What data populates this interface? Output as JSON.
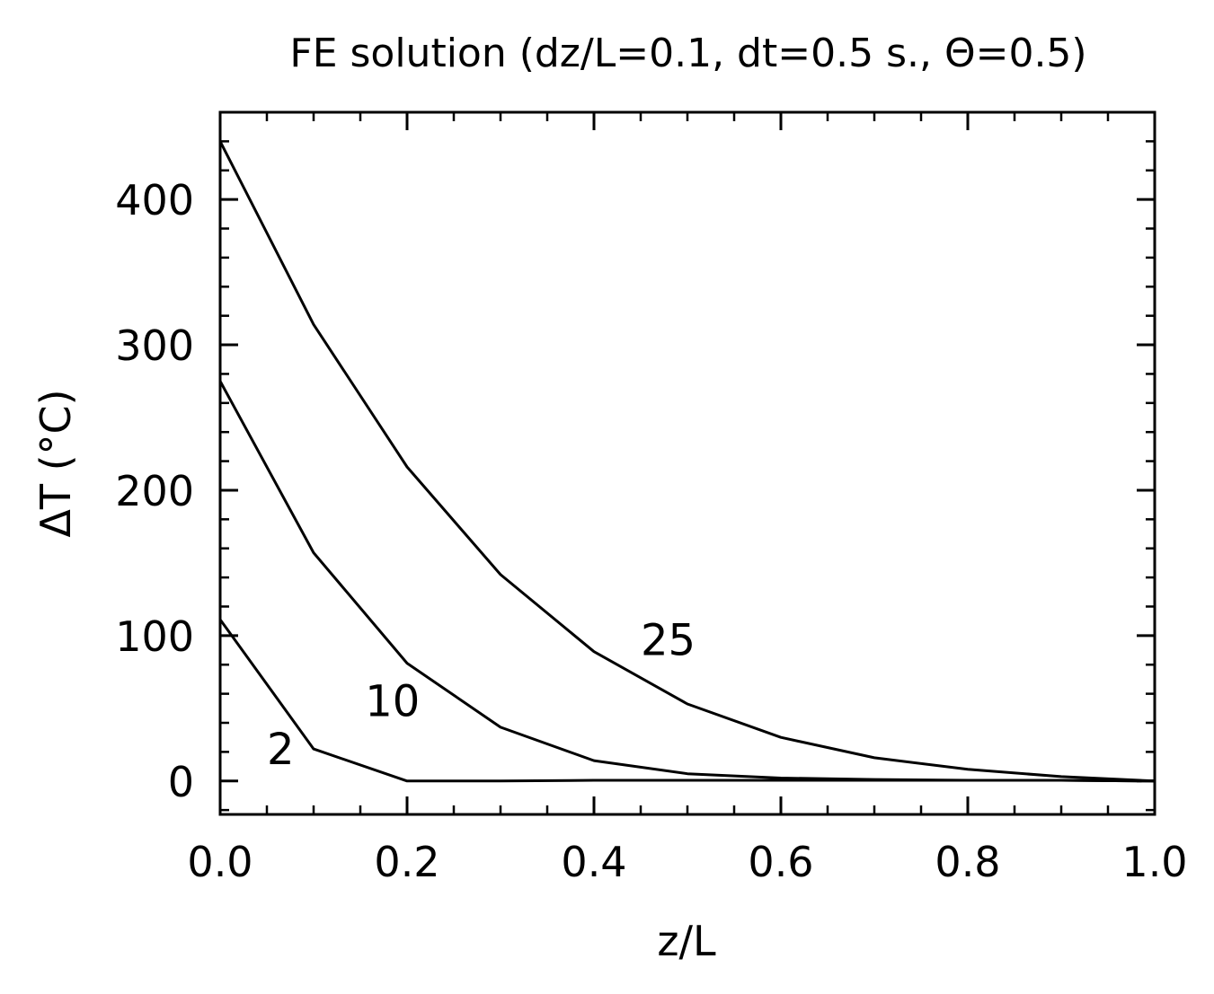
{
  "chart_data": {
    "type": "line",
    "title": "FE solution (dz/L=0.1, dt=0.5 s., Θ=0.5)",
    "xlabel": "z/L",
    "ylabel": "ΔT (°C)",
    "xlim": [
      0.0,
      1.0
    ],
    "ylim": [
      -23,
      460
    ],
    "x_ticks": [
      0.0,
      0.2,
      0.4,
      0.6,
      0.8,
      1.0
    ],
    "x_tick_labels": [
      "0.0",
      "0.2",
      "0.4",
      "0.6",
      "0.8",
      "1.0"
    ],
    "y_ticks": [
      0,
      100,
      200,
      300,
      400
    ],
    "y_tick_labels": [
      "0",
      "100",
      "200",
      "300",
      "400"
    ],
    "x_minor_step": 0.05,
    "y_minor_step": 20,
    "grid": false,
    "legend": "none",
    "line_color": "#000000",
    "x": [
      0.0,
      0.1,
      0.2,
      0.3,
      0.4,
      0.5,
      0.6,
      0.7,
      0.8,
      0.9,
      1.0
    ],
    "series": [
      {
        "label": "2",
        "label_pos": [
          0.05,
          22
        ],
        "values": [
          111,
          22,
          0,
          0,
          0.5,
          0.5,
          0.5,
          0.5,
          0.5,
          0.5,
          0
        ]
      },
      {
        "label": "10",
        "label_pos": [
          0.155,
          55
        ],
        "values": [
          275,
          157,
          81,
          37,
          14,
          5,
          2,
          1,
          0.5,
          0.5,
          0
        ]
      },
      {
        "label": "25",
        "label_pos": [
          0.45,
          97
        ],
        "values": [
          440,
          314,
          216,
          142,
          89,
          53,
          30,
          16,
          8,
          3,
          0
        ]
      }
    ]
  }
}
